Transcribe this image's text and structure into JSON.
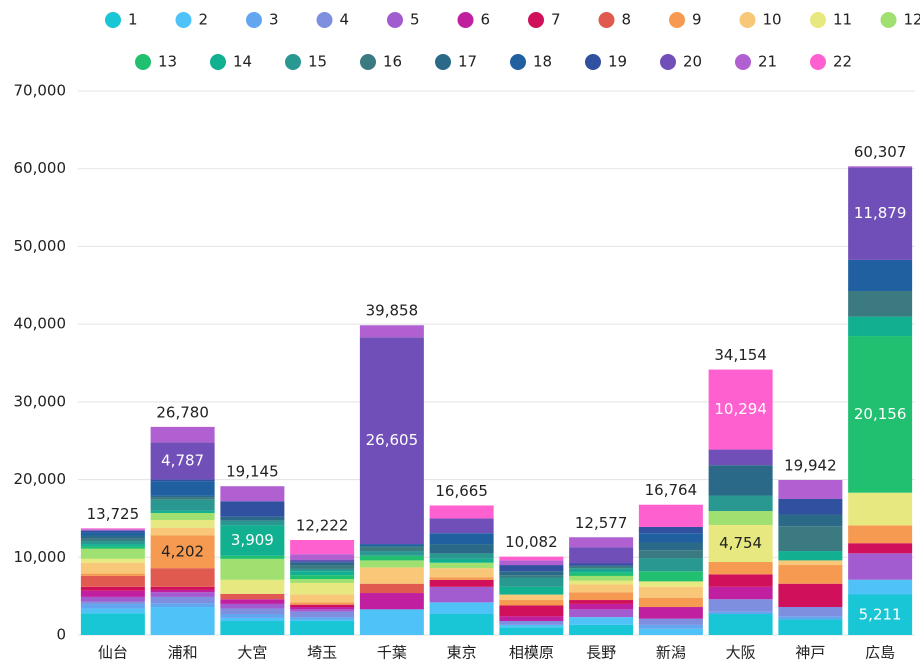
{
  "chart_data": {
    "type": "stacked_bar",
    "categories": [
      "仙台",
      "浦和",
      "大宮",
      "埼玉",
      "千葉",
      "東京",
      "相模原",
      "長野",
      "新潟",
      "大阪",
      "神戸",
      "広島"
    ],
    "ylim": [
      0,
      70000
    ],
    "yticks": [
      0,
      {
        "value": 10000,
        "label": "10,000"
      },
      {
        "value": 20000,
        "label": "20,000"
      },
      {
        "value": 30000,
        "label": "30,000"
      },
      {
        "value": 40000,
        "label": "40,000"
      },
      {
        "value": 50000,
        "label": "50,000"
      },
      {
        "value": 60000,
        "label": "60,000"
      },
      {
        "value": 70000,
        "label": "70,000"
      }
    ],
    "grid": true,
    "legend": "top",
    "totals": [
      13725,
      26780,
      19145,
      12222,
      39858,
      16665,
      10082,
      12577,
      16764,
      34154,
      19942,
      60307
    ],
    "total_labels": [
      "13,725",
      "26,780",
      "19,145",
      "12,222",
      "39,858",
      "16,665",
      "10,082",
      "12,577",
      "16,764",
      "34,154",
      "19,942",
      "60,307"
    ],
    "series": [
      {
        "name": "1",
        "color": "#19c6d6",
        "values": [
          2800,
          0,
          1800,
          1800,
          0,
          2700,
          1000,
          1300,
          0,
          2700,
          2000,
          5211
        ],
        "value_labels": [
          null,
          null,
          null,
          null,
          null,
          null,
          null,
          null,
          null,
          null,
          null,
          "5,211"
        ]
      },
      {
        "name": "2",
        "color": "#4fc3f7",
        "values": [
          600,
          3600,
          400,
          200,
          3300,
          1500,
          300,
          1000,
          800,
          0,
          0,
          1900
        ]
      },
      {
        "name": "3",
        "color": "#64a5f0",
        "values": [
          600,
          500,
          500,
          300,
          0,
          0,
          0,
          0,
          500,
          300,
          400,
          0
        ]
      },
      {
        "name": "4",
        "color": "#7e8fe0",
        "values": [
          300,
          800,
          700,
          700,
          0,
          0,
          500,
          0,
          800,
          1600,
          1200,
          0
        ]
      },
      {
        "name": "5",
        "color": "#a35bd0",
        "values": [
          600,
          600,
          600,
          300,
          0,
          2000,
          0,
          1000,
          0,
          0,
          0,
          3400
        ]
      },
      {
        "name": "6",
        "color": "#c020a0",
        "values": [
          800,
          300,
          600,
          300,
          2100,
          0,
          600,
          700,
          1500,
          1600,
          0,
          0
        ]
      },
      {
        "name": "7",
        "color": "#d0105a",
        "values": [
          500,
          400,
          0,
          300,
          0,
          900,
          1400,
          500,
          0,
          1600,
          3000,
          1300
        ]
      },
      {
        "name": "8",
        "color": "#e05a50",
        "values": [
          1400,
          2400,
          700,
          0,
          1200,
          0,
          0,
          0,
          0,
          0,
          0,
          0
        ]
      },
      {
        "name": "9",
        "color": "#f59a50",
        "values": [
          300,
          4202,
          0,
          300,
          0,
          300,
          700,
          1000,
          1200,
          1600,
          2400,
          2300
        ],
        "value_labels": [
          null,
          "4,202",
          null,
          null,
          null,
          null,
          null,
          null,
          null,
          null,
          null,
          null
        ]
      },
      {
        "name": "10",
        "color": "#f8c878",
        "values": [
          1400,
          1000,
          0,
          1000,
          2100,
          1200,
          700,
          1000,
          1400,
          0,
          600,
          0
        ]
      },
      {
        "name": "11",
        "color": "#e8e880",
        "values": [
          500,
          1000,
          1800,
          1500,
          0,
          0,
          0,
          500,
          700,
          4754,
          0,
          4200
        ],
        "value_labels": [
          null,
          null,
          null,
          null,
          null,
          null,
          null,
          null,
          null,
          "4,754",
          null,
          null
        ]
      },
      {
        "name": "12",
        "color": "#a0e070",
        "values": [
          1300,
          900,
          2700,
          500,
          900,
          700,
          0,
          600,
          0,
          1800,
          0,
          0
        ]
      },
      {
        "name": "13",
        "color": "#20c070",
        "values": [
          300,
          0,
          400,
          500,
          600,
          0,
          0,
          400,
          1300,
          0,
          0,
          20156
        ],
        "value_labels": [
          null,
          null,
          null,
          null,
          null,
          null,
          null,
          null,
          null,
          null,
          null,
          "20,156"
        ]
      },
      {
        "name": "14",
        "color": "#10b090",
        "values": [
          300,
          300,
          3909,
          500,
          0,
          500,
          1000,
          300,
          0,
          0,
          1200,
          2500
        ],
        "value_labels": [
          null,
          null,
          "3,909",
          null,
          null,
          null,
          null,
          null,
          null,
          null,
          null,
          null
        ]
      },
      {
        "name": "15",
        "color": "#289890",
        "values": [
          400,
          1400,
          600,
          300,
          600,
          700,
          1200,
          300,
          1700,
          2000,
          0,
          0
        ]
      },
      {
        "name": "16",
        "color": "#3a7a80",
        "values": [
          300,
          300,
          0,
          500,
          600,
          0,
          300,
          300,
          1000,
          0,
          3200,
          3300
        ]
      },
      {
        "name": "17",
        "color": "#2a6a88",
        "values": [
          400,
          200,
          500,
          300,
          0,
          1200,
          500,
          0,
          1000,
          3900,
          1500,
          0
        ]
      },
      {
        "name": "18",
        "color": "#2060a0",
        "values": [
          400,
          1900,
          0,
          0,
          300,
          1400,
          0,
          0,
          1200,
          0,
          0,
          4000
        ]
      },
      {
        "name": "19",
        "color": "#3050a0",
        "values": [
          200,
          200,
          2000,
          200,
          0,
          0,
          800,
          300,
          800,
          0,
          2000,
          0
        ]
      },
      {
        "name": "20",
        "color": "#7050b8",
        "values": [
          100,
          4787,
          0,
          200,
          26605,
          1900,
          0,
          2100,
          0,
          2006,
          0,
          11879
        ],
        "value_labels": [
          null,
          "4,787",
          null,
          null,
          "26,605",
          null,
          null,
          null,
          null,
          null,
          null,
          "11,879"
        ]
      },
      {
        "name": "21",
        "color": "#b060d0",
        "values": [
          100,
          1991,
          1936,
          700,
          1553,
          0,
          600,
          1277,
          0,
          0,
          2442,
          161
        ]
      },
      {
        "name": "22",
        "color": "#ff60d0",
        "values": [
          125,
          0,
          0,
          1822,
          0,
          1665,
          482,
          0,
          2864,
          10294,
          0,
          0
        ],
        "value_labels": [
          null,
          null,
          null,
          null,
          null,
          null,
          null,
          null,
          null,
          "10,294",
          null,
          null
        ]
      }
    ]
  }
}
